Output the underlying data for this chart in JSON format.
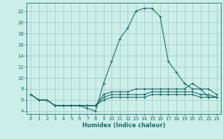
{
  "xlabel": "Humidex (Indice chaleur)",
  "background_color": "#cceee8",
  "grid_color": "#aacccc",
  "line_color": "#1a6b6b",
  "xlim": [
    -0.5,
    23.5
  ],
  "ylim": [
    3.5,
    23.5
  ],
  "yticks": [
    4,
    6,
    8,
    10,
    12,
    14,
    16,
    18,
    20,
    22
  ],
  "xticks": [
    0,
    1,
    2,
    3,
    4,
    5,
    6,
    7,
    8,
    9,
    10,
    11,
    12,
    13,
    14,
    15,
    16,
    17,
    18,
    19,
    20,
    21,
    22,
    23
  ],
  "curves": [
    {
      "x": [
        0,
        1,
        2,
        3,
        4,
        5,
        6,
        7,
        8,
        9,
        10,
        11,
        12,
        13,
        14,
        15,
        16,
        17,
        18,
        19,
        20,
        21,
        22,
        23
      ],
      "y": [
        7,
        6,
        6,
        5,
        5,
        5,
        5,
        4.5,
        4,
        9,
        13,
        17,
        19,
        22,
        22.5,
        22.5,
        21,
        13,
        11,
        9,
        8,
        8,
        6.5,
        6.5
      ]
    },
    {
      "x": [
        0,
        1,
        2,
        3,
        4,
        5,
        6,
        7,
        8,
        9,
        10,
        11,
        12,
        13,
        14,
        15,
        16,
        17,
        18,
        19,
        20,
        21,
        22,
        23
      ],
      "y": [
        7,
        6,
        6,
        5,
        5,
        5,
        5,
        5,
        5,
        7,
        7.5,
        7.5,
        7.5,
        8,
        8,
        8,
        8,
        8,
        8,
        8,
        9,
        8,
        8,
        7
      ]
    },
    {
      "x": [
        0,
        1,
        2,
        3,
        4,
        5,
        6,
        7,
        8,
        9,
        10,
        11,
        12,
        13,
        14,
        15,
        16,
        17,
        18,
        19,
        20,
        21,
        22,
        23
      ],
      "y": [
        7,
        6,
        6,
        5,
        5,
        5,
        5,
        5,
        5,
        6.5,
        7,
        7,
        7,
        7,
        7,
        7.5,
        7.5,
        7.5,
        7.5,
        7.5,
        7.5,
        7,
        7,
        6.5
      ]
    },
    {
      "x": [
        0,
        1,
        2,
        3,
        4,
        5,
        6,
        7,
        8,
        9,
        10,
        11,
        12,
        13,
        14,
        15,
        16,
        17,
        18,
        19,
        20,
        21,
        22,
        23
      ],
      "y": [
        7,
        6,
        6,
        5,
        5,
        5,
        5,
        5,
        5,
        6,
        6.5,
        6.5,
        6.5,
        6.5,
        6.5,
        7,
        7,
        7,
        7,
        7,
        7,
        6.5,
        6.5,
        6.5
      ]
    }
  ]
}
